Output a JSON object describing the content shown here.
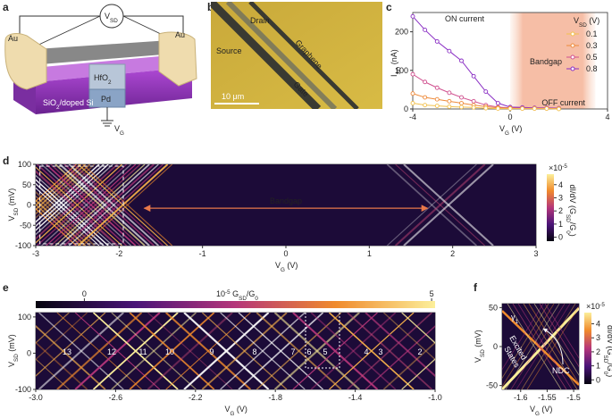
{
  "schematics": {
    "a": {
      "label": "a",
      "source_drain_voltage": {
        "parts": [
          {
            "text": "V"
          },
          {
            "sub": "SD"
          }
        ]
      },
      "left_contact": "Au",
      "right_contact": "Au",
      "dielectric": {
        "parts": [
          {
            "text": "HfO"
          },
          {
            "sub": "2"
          }
        ]
      },
      "substrate": {
        "parts": [
          {
            "text": "SiO"
          },
          {
            "sub": "2"
          },
          {
            "text": "/doped Si"
          }
        ]
      },
      "gate_metal": "Pd",
      "gate_voltage": {
        "parts": [
          {
            "text": "V"
          },
          {
            "sub": "G"
          }
        ]
      }
    },
    "b": {
      "label": "b",
      "drain": "Drain",
      "source": "Source",
      "graphene": "Graphene",
      "gate": "Gate",
      "scale_bar": "10 μm"
    }
  },
  "chart_data": [
    {
      "panel": "c",
      "type": "line",
      "xlabel": {
        "parts": [
          {
            "text": "V"
          },
          {
            "sub": "G"
          },
          {
            "text": " (V)"
          }
        ]
      },
      "ylabel": {
        "parts": [
          {
            "text": "I"
          },
          {
            "sub": "SD"
          },
          {
            "text": " (nA)"
          }
        ]
      },
      "x": [
        -4,
        -3.5,
        -3,
        -2.5,
        -2,
        -1.5,
        -1,
        -0.5,
        0,
        0.5,
        1,
        1.5,
        2
      ],
      "xlim": [
        -4,
        4
      ],
      "xticks": [
        -4,
        0,
        4
      ],
      "ylim": [
        0,
        250
      ],
      "yticks": [
        0,
        100,
        200
      ],
      "legend_title": {
        "parts": [
          {
            "text": "V"
          },
          {
            "sub": "SD"
          },
          {
            "text": " (V)"
          }
        ]
      },
      "legend": "upper right",
      "series": [
        {
          "name": "0.1",
          "color": "#f2c14e",
          "values": [
            15,
            10,
            8,
            6,
            5,
            4,
            2,
            1,
            1,
            1,
            1,
            1,
            0
          ]
        },
        {
          "name": "0.3",
          "color": "#ee8a3a",
          "values": [
            40,
            30,
            25,
            20,
            15,
            10,
            6,
            3,
            2,
            1,
            1,
            1,
            1
          ]
        },
        {
          "name": "0.5",
          "color": "#d0508f",
          "values": [
            90,
            70,
            55,
            42,
            30,
            20,
            10,
            5,
            3,
            2,
            2,
            2,
            1
          ]
        },
        {
          "name": "0.8",
          "color": "#8a2fc4",
          "values": [
            240,
            205,
            175,
            150,
            125,
            85,
            45,
            15,
            5,
            4,
            3,
            3,
            2
          ]
        }
      ],
      "shaded_region": {
        "label": "Bandgap",
        "x": [
          0,
          3.5
        ]
      },
      "annotations": [
        "ON current",
        "OFF current"
      ]
    },
    {
      "panel": "d",
      "type": "heatmap",
      "xlabel": {
        "parts": [
          {
            "text": "V"
          },
          {
            "sub": "G"
          },
          {
            "text": " (V)"
          }
        ]
      },
      "ylabel": {
        "parts": [
          {
            "text": "V"
          },
          {
            "sub": "SD"
          },
          {
            "text": " (mV)"
          }
        ]
      },
      "xlim": [
        -3,
        3
      ],
      "xticks": [
        -3,
        -2,
        -1,
        0,
        1,
        2,
        3
      ],
      "ylim": [
        -100,
        100
      ],
      "yticks": [
        -100,
        -50,
        0,
        50,
        100
      ],
      "colorbar": {
        "scale": {
          "parts": [
            {
              "text": "×10"
            },
            {
              "sup": "-5"
            }
          ]
        },
        "label": {
          "parts": [
            {
              "text": "dI/dV (G"
            },
            {
              "sub": "SD"
            },
            {
              "text": "/G"
            },
            {
              "sub": "0"
            },
            {
              "text": ")"
            }
          ]
        },
        "clim": [
          -0.3,
          4.8
        ],
        "ticks": [
          0,
          1,
          2,
          3,
          4
        ]
      },
      "annotations": [
        "Bandgap"
      ]
    },
    {
      "panel": "e",
      "type": "heatmap",
      "xlabel": {
        "parts": [
          {
            "text": "V"
          },
          {
            "sub": "G"
          },
          {
            "text": " (V)"
          }
        ]
      },
      "ylabel": {
        "parts": [
          {
            "text": "V"
          },
          {
            "sub": "SD"
          },
          {
            "text": " (mV)"
          }
        ]
      },
      "xlim": [
        -3,
        -1
      ],
      "xticks": [
        {
          "value": -3,
          "label": "-3.0"
        },
        -2.6,
        -2.2,
        -1.8,
        -1.4,
        {
          "value": -1,
          "label": "-1.0"
        }
      ],
      "ylim": [
        -100,
        112
      ],
      "yticks": [
        -100,
        0,
        100
      ],
      "colorbar": {
        "label": {
          "parts": [
            {
              "text": "10"
            },
            {
              "sup": "-5"
            },
            {
              "text": " G"
            },
            {
              "sub": "SD"
            },
            {
              "text": "/G"
            },
            {
              "sub": "0"
            }
          ]
        },
        "clim": [
          -0.7,
          5.05
        ],
        "ticks": [
          0,
          5
        ]
      },
      "diamond_labels": [
        "13",
        "12",
        "11",
        "10",
        "9",
        "8",
        "7",
        "6",
        "5",
        "4",
        "3",
        "2"
      ]
    },
    {
      "panel": "f",
      "type": "heatmap",
      "xlabel": {
        "parts": [
          {
            "text": "V"
          },
          {
            "sub": "G"
          },
          {
            "text": " (V)"
          }
        ]
      },
      "ylabel": {
        "parts": [
          {
            "text": "V"
          },
          {
            "sub": "SD"
          },
          {
            "text": " (mV)"
          }
        ]
      },
      "xlim": [
        -1.635,
        -1.49
      ],
      "xticks": [
        -1.6,
        -1.55,
        -1.5
      ],
      "ylim": [
        -55,
        55
      ],
      "yticks": [
        -50,
        0,
        50
      ],
      "colorbar": {
        "scale": {
          "parts": [
            {
              "text": "×10"
            },
            {
              "sup": "-5"
            }
          ]
        },
        "label": {
          "parts": [
            {
              "text": "dI/dV (G"
            },
            {
              "sub": "SD"
            },
            {
              "text": "/G"
            },
            {
              "sub": "0"
            },
            {
              "text": ")"
            }
          ]
        },
        "clim": [
          -0.3,
          4.8
        ],
        "ticks": [
          0,
          1,
          2,
          3,
          4
        ]
      },
      "annotations": [
        {
          "parts": [
            {
              "text": "γ"
            },
            {
              "sub": "1"
            }
          ]
        },
        "Excited",
        "States",
        "NDC"
      ]
    }
  ]
}
